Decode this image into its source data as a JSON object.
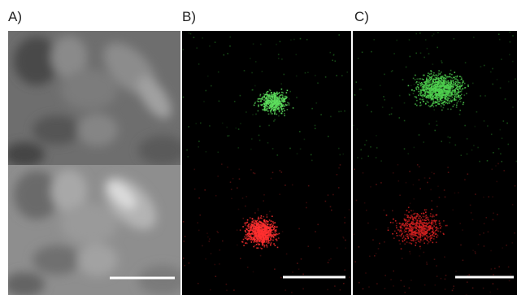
{
  "panels": [
    {
      "label": "A)"
    },
    {
      "label": "B)"
    },
    {
      "label": "C)"
    }
  ]
}
